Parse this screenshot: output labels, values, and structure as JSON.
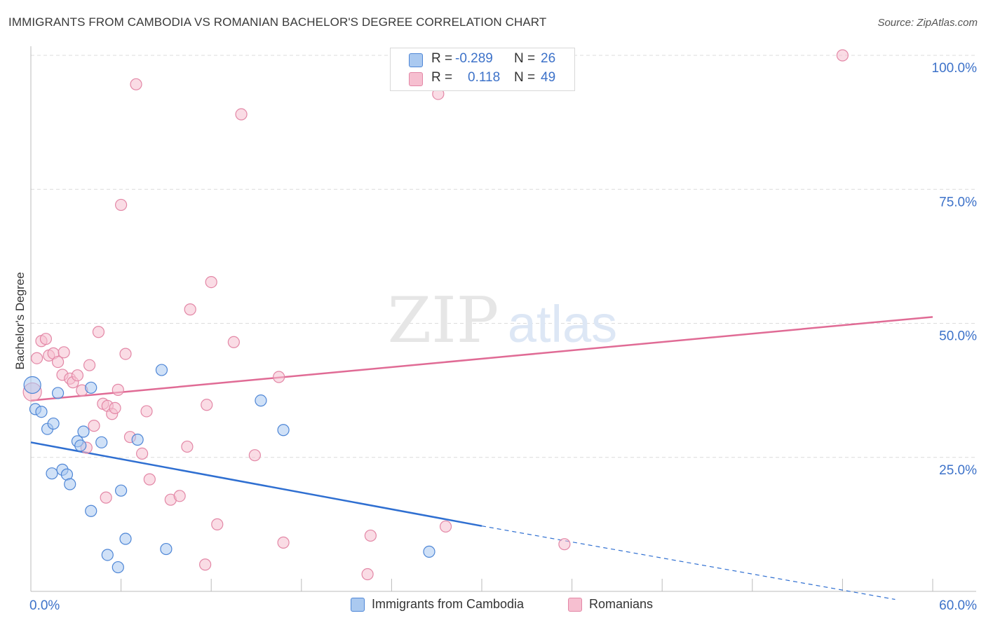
{
  "title": "IMMIGRANTS FROM CAMBODIA VS ROMANIAN BACHELOR'S DEGREE CORRELATION CHART",
  "source": "Source: ZipAtlas.com",
  "watermark": {
    "zip": "ZIP",
    "atlas": "atlas"
  },
  "stats": {
    "r_label": "R =",
    "n_label": "N =",
    "cambodia": {
      "r": "-0.289",
      "n": "26"
    },
    "romanians": {
      "r": "0.118",
      "n": "49"
    }
  },
  "legend": {
    "cambodia": "Immigrants from Cambodia",
    "romanians": "Romanians"
  },
  "colors": {
    "cambodia_fill": "#aac9f0",
    "cambodia_stroke": "#4e86d6",
    "cambodia_line": "#2f6fd1",
    "romanians_fill": "#f6bfd0",
    "romanians_stroke": "#e387a6",
    "romanians_line": "#e06b95",
    "axis_label": "#3d72c9"
  },
  "chart_data": {
    "type": "scatter",
    "title": "IMMIGRANTS FROM CAMBODIA VS ROMANIAN BACHELOR'S DEGREE CORRELATION CHART",
    "xlabel": "",
    "ylabel": "Bachelor's Degree",
    "xlim": [
      0,
      60
    ],
    "ylim": [
      0,
      100
    ],
    "x_tick_labels": [
      {
        "value": 0,
        "label": "0.0%"
      },
      {
        "value": 60,
        "label": "60.0%"
      }
    ],
    "y_tick_labels": [
      {
        "value": 25,
        "label": "25.0%"
      },
      {
        "value": 50,
        "label": "50.0%"
      },
      {
        "value": 75,
        "label": "75.0%"
      },
      {
        "value": 100,
        "label": "100.0%"
      }
    ],
    "grid": true,
    "legend_position": "bottom",
    "series": [
      {
        "name": "Immigrants from Cambodia",
        "r": -0.289,
        "n": 26,
        "points": [
          [
            0.1,
            38.5
          ],
          [
            0.3,
            34.0
          ],
          [
            0.7,
            33.5
          ],
          [
            1.1,
            30.3
          ],
          [
            1.5,
            31.3
          ],
          [
            1.8,
            37.0
          ],
          [
            1.4,
            22.0
          ],
          [
            2.1,
            22.7
          ],
          [
            2.4,
            21.8
          ],
          [
            2.6,
            20.0
          ],
          [
            3.1,
            28.0
          ],
          [
            3.3,
            27.2
          ],
          [
            3.5,
            29.8
          ],
          [
            4.7,
            27.8
          ],
          [
            4.0,
            38.0
          ],
          [
            4.0,
            15.0
          ],
          [
            6.0,
            18.8
          ],
          [
            6.3,
            9.8
          ],
          [
            5.1,
            6.8
          ],
          [
            5.8,
            4.5
          ],
          [
            7.1,
            28.3
          ],
          [
            8.7,
            41.3
          ],
          [
            9.0,
            7.9
          ],
          [
            15.3,
            35.6
          ],
          [
            16.8,
            30.1
          ],
          [
            26.5,
            7.4
          ]
        ],
        "trend": {
          "x0": 0,
          "y0": 27.8,
          "x1": 30,
          "y1": 12.2,
          "dashed_to_x": 57.5,
          "dashed_to_y": -1.5
        }
      },
      {
        "name": "Romanians",
        "r": 0.118,
        "n": 49,
        "points": [
          [
            0.1,
            37.2
          ],
          [
            0.4,
            43.5
          ],
          [
            0.7,
            46.7
          ],
          [
            1.0,
            47.1
          ],
          [
            1.2,
            44.0
          ],
          [
            1.5,
            44.4
          ],
          [
            1.8,
            42.8
          ],
          [
            2.2,
            44.6
          ],
          [
            2.1,
            40.4
          ],
          [
            2.6,
            39.7
          ],
          [
            2.8,
            39.0
          ],
          [
            3.1,
            40.3
          ],
          [
            3.4,
            37.5
          ],
          [
            3.7,
            26.8
          ],
          [
            3.9,
            42.2
          ],
          [
            4.2,
            30.9
          ],
          [
            4.5,
            48.4
          ],
          [
            4.8,
            35.0
          ],
          [
            5.1,
            34.6
          ],
          [
            5.4,
            33.1
          ],
          [
            5.6,
            34.2
          ],
          [
            5.8,
            37.6
          ],
          [
            6.0,
            72.1
          ],
          [
            6.3,
            44.3
          ],
          [
            6.6,
            28.8
          ],
          [
            7.0,
            94.6
          ],
          [
            7.4,
            25.7
          ],
          [
            7.7,
            33.6
          ],
          [
            7.9,
            20.9
          ],
          [
            5.0,
            17.5
          ],
          [
            9.3,
            17.1
          ],
          [
            9.9,
            17.8
          ],
          [
            10.4,
            27.0
          ],
          [
            10.6,
            52.6
          ],
          [
            11.7,
            34.8
          ],
          [
            12.0,
            57.7
          ],
          [
            12.4,
            12.5
          ],
          [
            11.6,
            5.0
          ],
          [
            13.5,
            46.5
          ],
          [
            14.0,
            89.0
          ],
          [
            14.9,
            25.4
          ],
          [
            16.5,
            40.0
          ],
          [
            16.8,
            9.1
          ],
          [
            22.6,
            10.4
          ],
          [
            22.4,
            3.2
          ],
          [
            27.1,
            92.8
          ],
          [
            27.6,
            12.1
          ],
          [
            35.5,
            8.8
          ],
          [
            54.0,
            100.0
          ]
        ],
        "trend": {
          "x0": 0,
          "y0": 35.6,
          "x1": 60,
          "y1": 51.2
        }
      }
    ]
  }
}
